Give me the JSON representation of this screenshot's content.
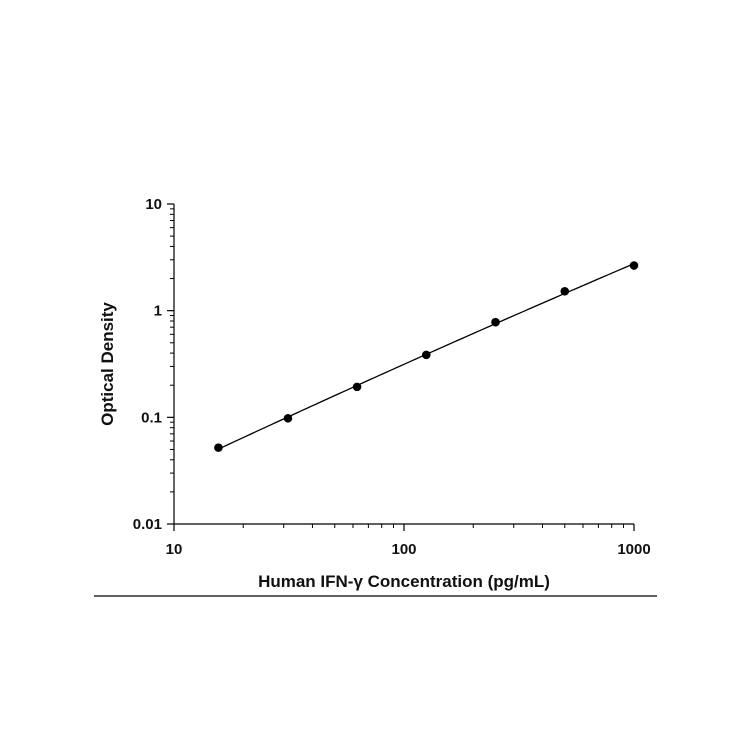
{
  "chart_data": {
    "type": "scatter",
    "title": "",
    "xlabel": "Human IFN-γ Concentration (pg/mL)",
    "ylabel": "Optical Density",
    "x_scale": "log",
    "y_scale": "log",
    "xlim": [
      10,
      1000
    ],
    "ylim": [
      0.01,
      10
    ],
    "x_ticks": [
      {
        "value": 10,
        "label": "10"
      },
      {
        "value": 100,
        "label": "100"
      },
      {
        "value": 1000,
        "label": "1000"
      }
    ],
    "y_ticks": [
      {
        "value": 0.01,
        "label": "0.01"
      },
      {
        "value": 0.1,
        "label": "0.1"
      },
      {
        "value": 1,
        "label": "1"
      },
      {
        "value": 10,
        "label": "10"
      }
    ],
    "grid": false,
    "legend": "none",
    "series": [
      {
        "x": [
          15.6,
          31.3,
          62.5,
          125,
          250,
          500,
          1000
        ],
        "y": [
          0.052,
          0.098,
          0.193,
          0.385,
          0.78,
          1.52,
          2.65
        ],
        "fit_curve": true
      }
    ],
    "colors": {
      "marker": "#000000",
      "line": "#000000",
      "axis": "#000000"
    }
  }
}
